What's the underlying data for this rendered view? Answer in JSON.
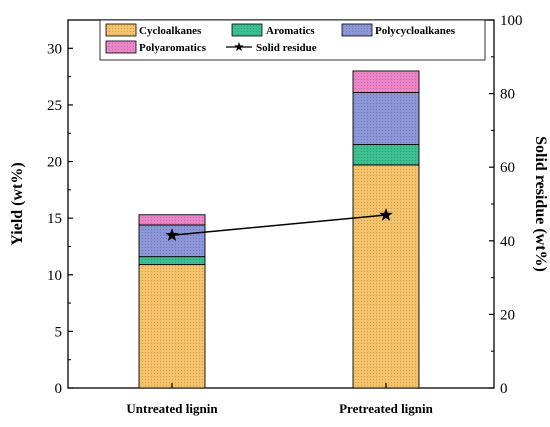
{
  "chart_data": {
    "type": "bar",
    "stacked": true,
    "categories": [
      "Untreated lignin",
      "Pretreated lignin"
    ],
    "ylabel": "Yield (wt%)",
    "y2label": "Solid residue (wt%)",
    "ylim": [
      0,
      32.5
    ],
    "y2lim": [
      0,
      100
    ],
    "yticks": [
      0,
      5,
      10,
      15,
      20,
      25,
      30
    ],
    "y2ticks": [
      0,
      20,
      40,
      60,
      80,
      100
    ],
    "grid": false,
    "legend_position": "top",
    "series": [
      {
        "name": "Cycloalkanes",
        "values": [
          10.9,
          19.7
        ],
        "color": "#f5c36b"
      },
      {
        "name": "Aromatics",
        "values": [
          0.7,
          1.8
        ],
        "color": "#3dbf91"
      },
      {
        "name": "Polycycloalkanes",
        "values": [
          2.8,
          4.6
        ],
        "color": "#8c97d9"
      },
      {
        "name": "Polyaromatics",
        "values": [
          0.9,
          1.9
        ],
        "color": "#ec86c8"
      }
    ],
    "line_series": {
      "name": "Solid residue",
      "axis": "right",
      "values": [
        41.5,
        47
      ],
      "color": "#000000",
      "marker": "star"
    }
  }
}
